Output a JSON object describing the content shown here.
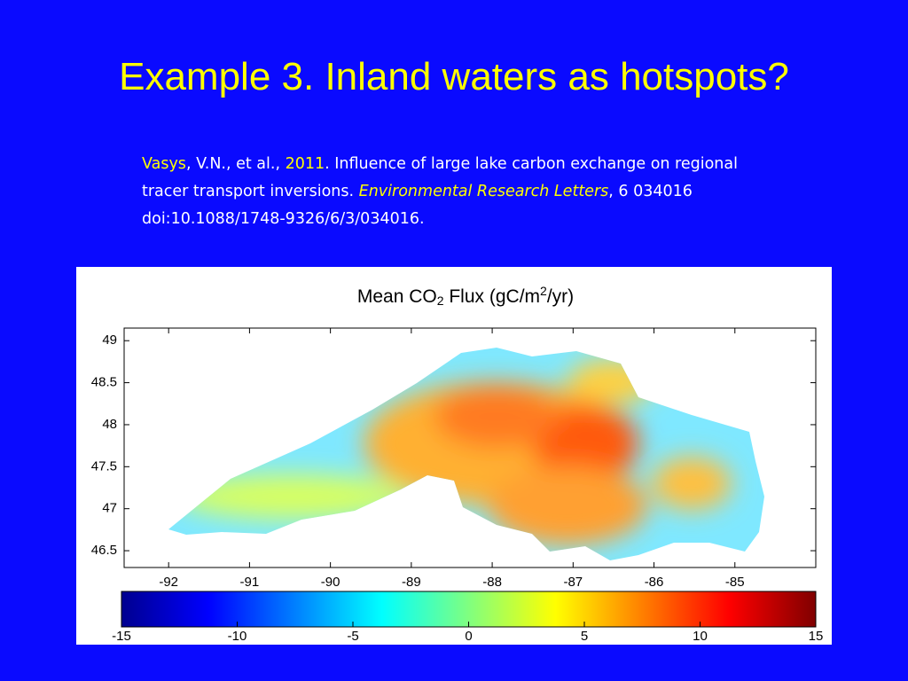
{
  "slide": {
    "title": "Example 3. Inland waters as hotspots?",
    "citation": {
      "author": "Vasys",
      "authors_rest": ", V.N., et al., ",
      "year": "2011",
      "text": ". Influence of large lake carbon exchange on regional tracer transport inversions. ",
      "journal": "Environmental Research Letters",
      "rest": ", 6 034016 doi:10.1088/1748-9326/6/3/034016."
    }
  },
  "chart_data": {
    "type": "heatmap-map",
    "title": [
      "Mean CO",
      "2",
      " Flux (gC/m",
      "2",
      "/yr)"
    ],
    "xlim": [
      -92.55,
      -84.0
    ],
    "xticks": [
      -92,
      -91,
      -90,
      -89,
      -88,
      -87,
      -86,
      -85
    ],
    "ylim": [
      46.3,
      49.15
    ],
    "yticks": [
      46.5,
      47,
      47.5,
      48,
      48.5,
      49
    ],
    "colorbar": {
      "lim": [
        -15,
        15
      ],
      "ticks": [
        -15,
        -10,
        -5,
        0,
        5,
        10,
        15
      ],
      "colormap": "jet"
    }
  }
}
